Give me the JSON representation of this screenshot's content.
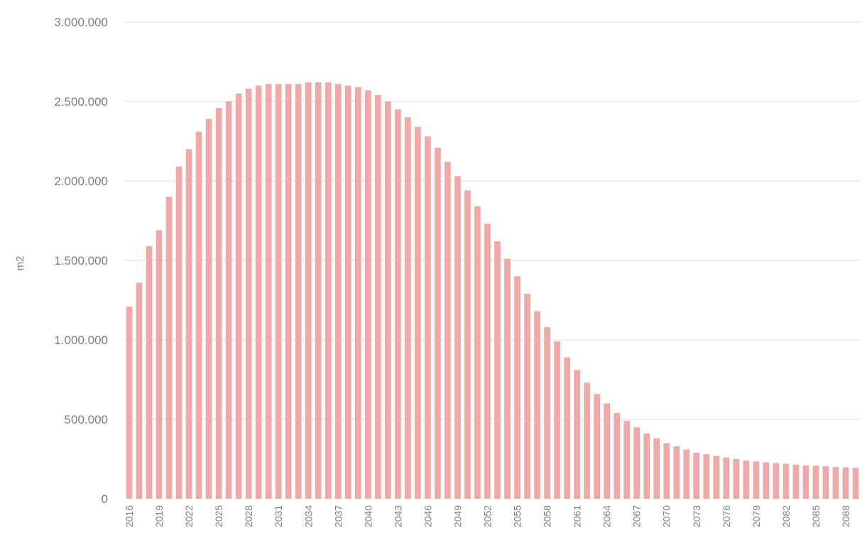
{
  "colors": {
    "bar": "#eeaaa8",
    "grid": "#dcdcdc",
    "axis_text": "#7f7f7f",
    "background": "#ffffff"
  },
  "chart_data": {
    "type": "bar",
    "ylabel": "m2",
    "ylim": [
      0,
      3000000
    ],
    "grid": true,
    "y_ticks": [
      0,
      500000,
      1000000,
      1500000,
      2000000,
      2500000,
      3000000
    ],
    "y_tick_labels": [
      "0",
      "500.000",
      "1.000.000",
      "1.500.000",
      "2.000.000",
      "2.500.000",
      "3.000.000"
    ],
    "x_tick_labels": [
      "2016",
      "2019",
      "2022",
      "2025",
      "2028",
      "2031",
      "2034",
      "2037",
      "2040",
      "2043",
      "2046",
      "2049",
      "2052",
      "2055",
      "2058",
      "2061",
      "2064",
      "2067",
      "2070",
      "2073",
      "2076",
      "2079",
      "2082",
      "2085",
      "2088"
    ],
    "categories": [
      "2016",
      "2017",
      "2018",
      "2019",
      "2020",
      "2021",
      "2022",
      "2023",
      "2024",
      "2025",
      "2026",
      "2027",
      "2028",
      "2029",
      "2030",
      "2031",
      "2032",
      "2033",
      "2034",
      "2035",
      "2036",
      "2037",
      "2038",
      "2039",
      "2040",
      "2041",
      "2042",
      "2043",
      "2044",
      "2045",
      "2046",
      "2047",
      "2048",
      "2049",
      "2050",
      "2051",
      "2052",
      "2053",
      "2054",
      "2055",
      "2056",
      "2057",
      "2058",
      "2059",
      "2060",
      "2061",
      "2062",
      "2063",
      "2064",
      "2065",
      "2066",
      "2067",
      "2068",
      "2069",
      "2070",
      "2071",
      "2072",
      "2073",
      "2074",
      "2075",
      "2076",
      "2077",
      "2078",
      "2079",
      "2080",
      "2081",
      "2082",
      "2083",
      "2084",
      "2085",
      "2086",
      "2087",
      "2088",
      "2089"
    ],
    "values": [
      1210000,
      1360000,
      1590000,
      1690000,
      1900000,
      2090000,
      2200000,
      2310000,
      2390000,
      2460000,
      2500000,
      2550000,
      2580000,
      2600000,
      2610000,
      2610000,
      2610000,
      2610000,
      2620000,
      2620000,
      2620000,
      2610000,
      2600000,
      2590000,
      2570000,
      2540000,
      2500000,
      2450000,
      2400000,
      2340000,
      2280000,
      2210000,
      2120000,
      2030000,
      1940000,
      1840000,
      1730000,
      1620000,
      1510000,
      1400000,
      1290000,
      1180000,
      1080000,
      990000,
      890000,
      810000,
      730000,
      660000,
      600000,
      540000,
      490000,
      450000,
      410000,
      380000,
      350000,
      330000,
      310000,
      290000,
      280000,
      270000,
      260000,
      250000,
      240000,
      235000,
      230000,
      225000,
      220000,
      215000,
      210000,
      208000,
      205000,
      200000,
      198000,
      195000
    ]
  }
}
